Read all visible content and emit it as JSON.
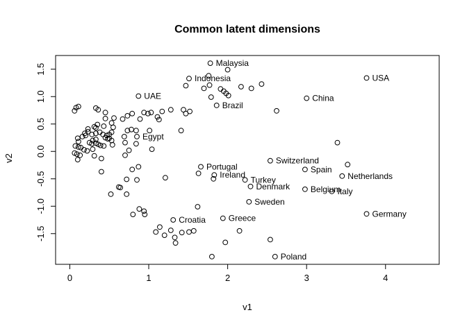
{
  "window": {
    "background": "#ffffff"
  },
  "chart_data": {
    "type": "scatter",
    "title": "Common latent dimensions",
    "xlabel": "v1",
    "ylabel": "v2",
    "xlim": [
      -0.18,
      4.68
    ],
    "ylim": [
      -2.06,
      1.75
    ],
    "grid": false,
    "legend": "none",
    "marker": "open-circle",
    "colors": {
      "marker": "#000000",
      "text": "#000000",
      "box": "#000000",
      "background": "#ffffff"
    },
    "xticks": [
      {
        "v": 0,
        "label": "0"
      },
      {
        "v": 1,
        "label": "1"
      },
      {
        "v": 2,
        "label": "2"
      },
      {
        "v": 3,
        "label": "3"
      },
      {
        "v": 4,
        "label": "4"
      }
    ],
    "yticks": [
      {
        "v": -1.5,
        "label": "-1.5"
      },
      {
        "v": -1.0,
        "label": "-1.0"
      },
      {
        "v": -0.5,
        "label": "-0.5"
      },
      {
        "v": 0.0,
        "label": "0.0"
      },
      {
        "v": 0.5,
        "label": "0.5"
      },
      {
        "v": 1.0,
        "label": "1.0"
      },
      {
        "v": 1.5,
        "label": "1.5"
      }
    ],
    "labeled_points": [
      {
        "label": "Malaysia",
        "x": 1.78,
        "y": 1.61
      },
      {
        "label": "Indonesia",
        "x": 1.51,
        "y": 1.33
      },
      {
        "label": "USA",
        "x": 3.76,
        "y": 1.34
      },
      {
        "label": "UAE",
        "x": 0.87,
        "y": 1.01
      },
      {
        "label": "China",
        "x": 3.0,
        "y": 0.97
      },
      {
        "label": "Brazil",
        "x": 1.86,
        "y": 0.84
      },
      {
        "label": "Egypt",
        "x": 0.85,
        "y": 0.27
      },
      {
        "label": "Switzerland",
        "x": 2.54,
        "y": -0.17
      },
      {
        "label": "Portugal",
        "x": 1.66,
        "y": -0.28
      },
      {
        "label": "Spain",
        "x": 2.98,
        "y": -0.33
      },
      {
        "label": "Ireland",
        "x": 1.83,
        "y": -0.43
      },
      {
        "label": "Netherlands",
        "x": 3.45,
        "y": -0.45
      },
      {
        "label": "Turkey",
        "x": 2.22,
        "y": -0.52
      },
      {
        "label": "Denmark",
        "x": 2.29,
        "y": -0.64
      },
      {
        "label": "Belgium",
        "x": 2.98,
        "y": -0.69
      },
      {
        "label": "Italy",
        "x": 3.32,
        "y": -0.73
      },
      {
        "label": "Sweden",
        "x": 2.27,
        "y": -0.92
      },
      {
        "label": "Germany",
        "x": 3.76,
        "y": -1.14
      },
      {
        "label": "Greece",
        "x": 1.94,
        "y": -1.22
      },
      {
        "label": "Croatia",
        "x": 1.31,
        "y": -1.25
      },
      {
        "label": "Poland",
        "x": 2.6,
        "y": -1.92
      }
    ],
    "points": [
      [
        2.0,
        1.49
      ],
      [
        1.76,
        1.38
      ],
      [
        1.47,
        1.2
      ],
      [
        1.7,
        1.15
      ],
      [
        1.77,
        1.21
      ],
      [
        1.91,
        1.14
      ],
      [
        1.95,
        1.1
      ],
      [
        1.98,
        1.06
      ],
      [
        2.01,
        1.02
      ],
      [
        2.17,
        1.18
      ],
      [
        2.3,
        1.15
      ],
      [
        2.43,
        1.23
      ],
      [
        1.79,
        0.99
      ],
      [
        2.62,
        0.74
      ],
      [
        3.39,
        0.16
      ],
      [
        3.52,
        -0.24
      ],
      [
        0.45,
        0.71
      ],
      [
        0.56,
        0.61
      ],
      [
        0.67,
        0.59
      ],
      [
        0.73,
        0.65
      ],
      [
        0.79,
        0.69
      ],
      [
        0.89,
        0.59
      ],
      [
        0.94,
        0.71
      ],
      [
        0.99,
        0.69
      ],
      [
        1.03,
        0.71
      ],
      [
        1.11,
        0.63
      ],
      [
        1.13,
        0.58
      ],
      [
        1.17,
        0.73
      ],
      [
        1.28,
        0.76
      ],
      [
        1.44,
        0.76
      ],
      [
        1.47,
        0.69
      ],
      [
        1.52,
        0.73
      ],
      [
        0.08,
        0.8
      ],
      [
        0.11,
        0.82
      ],
      [
        0.06,
        0.74
      ],
      [
        0.33,
        0.79
      ],
      [
        0.36,
        0.76
      ],
      [
        0.45,
        0.6
      ],
      [
        0.53,
        0.52
      ],
      [
        0.23,
        0.41
      ],
      [
        0.31,
        0.45
      ],
      [
        0.33,
        0.43
      ],
      [
        0.43,
        0.46
      ],
      [
        0.55,
        0.44
      ],
      [
        0.35,
        0.49
      ],
      [
        0.19,
        0.33
      ],
      [
        0.23,
        0.36
      ],
      [
        0.16,
        0.27
      ],
      [
        0.2,
        0.29
      ],
      [
        0.1,
        0.24
      ],
      [
        0.11,
        0.18
      ],
      [
        0.28,
        0.31
      ],
      [
        0.33,
        0.33
      ],
      [
        0.38,
        0.35
      ],
      [
        0.42,
        0.31
      ],
      [
        0.47,
        0.29
      ],
      [
        0.5,
        0.24
      ],
      [
        0.53,
        0.2
      ],
      [
        0.29,
        0.2
      ],
      [
        0.33,
        0.22
      ],
      [
        0.25,
        0.16
      ],
      [
        0.28,
        0.14
      ],
      [
        0.33,
        0.15
      ],
      [
        0.36,
        0.13
      ],
      [
        0.39,
        0.11
      ],
      [
        0.43,
        0.1
      ],
      [
        0.45,
        0.25
      ],
      [
        0.48,
        0.23
      ],
      [
        0.5,
        0.31
      ],
      [
        0.53,
        0.35
      ],
      [
        0.54,
        0.12
      ],
      [
        0.07,
        0.1
      ],
      [
        0.11,
        0.08
      ],
      [
        0.14,
        0.07
      ],
      [
        0.18,
        0.03
      ],
      [
        0.22,
        0.01
      ],
      [
        0.29,
        0.04
      ],
      [
        0.06,
        -0.03
      ],
      [
        0.09,
        -0.05
      ],
      [
        0.13,
        -0.07
      ],
      [
        0.31,
        -0.08
      ],
      [
        0.69,
        0.27
      ],
      [
        0.7,
        0.16
      ],
      [
        0.73,
        0.38
      ],
      [
        0.78,
        0.4
      ],
      [
        0.84,
        0.38
      ],
      [
        1.01,
        0.38
      ],
      [
        1.04,
        0.04
      ],
      [
        0.75,
        0.02
      ],
      [
        0.7,
        -0.07
      ],
      [
        1.41,
        0.38
      ],
      [
        0.84,
        0.14
      ],
      [
        0.1,
        -0.15
      ],
      [
        0.4,
        -0.13
      ],
      [
        0.4,
        -0.37
      ],
      [
        0.79,
        -0.33
      ],
      [
        0.87,
        -0.28
      ],
      [
        0.72,
        -0.51
      ],
      [
        0.85,
        -0.52
      ],
      [
        1.21,
        -0.48
      ],
      [
        0.62,
        -0.65
      ],
      [
        0.64,
        -0.66
      ],
      [
        0.52,
        -0.78
      ],
      [
        0.72,
        -0.78
      ],
      [
        1.63,
        -0.4
      ],
      [
        1.82,
        -0.5
      ],
      [
        0.88,
        -1.05
      ],
      [
        0.94,
        -1.09
      ],
      [
        0.95,
        -1.15
      ],
      [
        0.8,
        -1.15
      ],
      [
        1.62,
        -1.01
      ],
      [
        1.09,
        -1.47
      ],
      [
        1.14,
        -1.38
      ],
      [
        1.2,
        -1.53
      ],
      [
        1.28,
        -1.44
      ],
      [
        1.33,
        -1.57
      ],
      [
        1.34,
        -1.67
      ],
      [
        1.42,
        -1.48
      ],
      [
        1.51,
        -1.47
      ],
      [
        1.57,
        -1.45
      ],
      [
        2.15,
        -1.45
      ],
      [
        1.97,
        -1.66
      ],
      [
        2.54,
        -1.61
      ],
      [
        1.8,
        -1.92
      ]
    ]
  }
}
